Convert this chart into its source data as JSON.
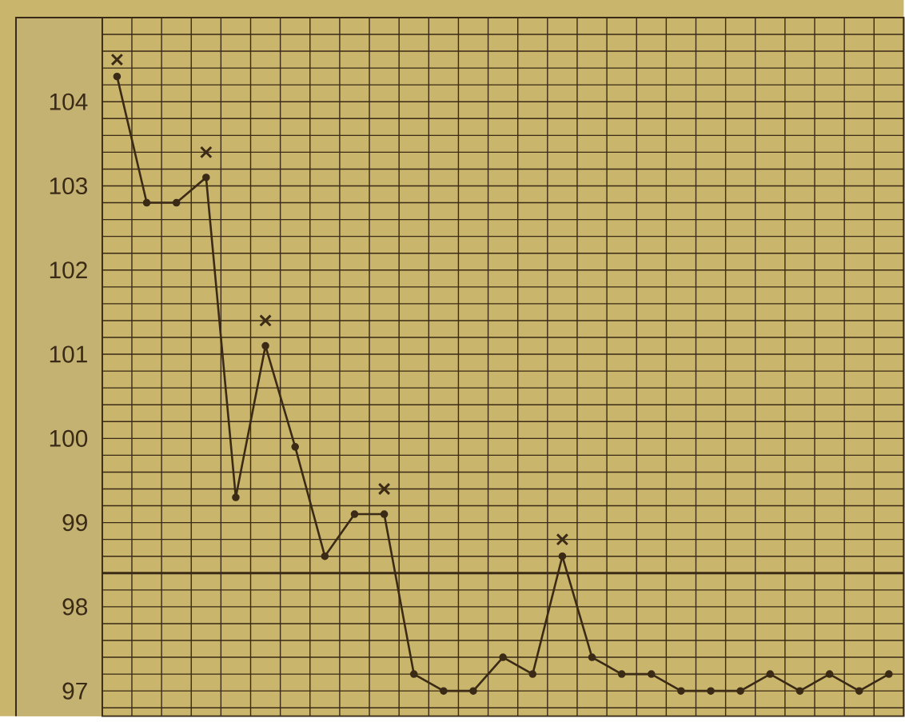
{
  "chart_data": {
    "type": "line",
    "categories": [
      null,
      null,
      null,
      null,
      null,
      null,
      null,
      null,
      null,
      null,
      null,
      null,
      null,
      null,
      null,
      null,
      null,
      null,
      null,
      null,
      null,
      null,
      null,
      null,
      null,
      null,
      null
    ],
    "series": [
      {
        "color": "#3a2a16",
        "marker": "circle",
        "values": [
          104.3,
          102.8,
          102.8,
          103.1,
          99.3,
          101.1,
          99.9,
          98.6,
          99.1,
          99.1,
          97.2,
          97.0,
          97.0,
          97.4,
          97.2,
          98.6,
          97.4,
          97.2,
          97.2,
          97.0,
          97.0,
          97.0,
          97.2,
          97.0,
          97.2,
          97.0,
          97.2
        ]
      },
      {
        "type": "scatter",
        "color": "#3a2a16",
        "marker": "cross",
        "values": [
          104.5,
          null,
          null,
          103.4,
          null,
          101.4,
          null,
          null,
          null,
          99.4,
          null,
          null,
          null,
          null,
          null,
          98.8,
          null,
          null,
          null,
          null,
          null,
          null,
          null,
          null,
          null,
          null,
          null
        ]
      }
    ],
    "ylim": [
      96.7,
      105.0
    ],
    "yticks": [
      {
        "value": 96.8,
        "label": null
      },
      97,
      {
        "value": 97.2,
        "label": null
      },
      {
        "value": 97.4,
        "label": null
      },
      {
        "value": 97.6,
        "label": null
      },
      {
        "value": 97.8,
        "label": null
      },
      98,
      {
        "value": 98.2,
        "label": null
      },
      {
        "value": 98.4,
        "label": null
      },
      {
        "value": 98.6,
        "label": null
      },
      {
        "value": 98.8,
        "label": null
      },
      99,
      {
        "value": 99.2,
        "label": null
      },
      {
        "value": 99.4,
        "label": null
      },
      {
        "value": 99.6,
        "label": null
      },
      {
        "value": 99.8,
        "label": null
      },
      100,
      {
        "value": 100.2,
        "label": null
      },
      {
        "value": 100.4,
        "label": null
      },
      {
        "value": 100.6,
        "label": null
      },
      {
        "value": 100.8,
        "label": null
      },
      101,
      {
        "value": 101.2,
        "label": null
      },
      {
        "value": 101.4,
        "label": null
      },
      {
        "value": 101.6,
        "label": null
      },
      {
        "value": 101.8,
        "label": null
      },
      102,
      {
        "value": 102.2,
        "label": null
      },
      {
        "value": 102.4,
        "label": null
      },
      {
        "value": 102.6,
        "label": null
      },
      {
        "value": 102.8,
        "label": null
      },
      103,
      {
        "value": 103.2,
        "label": null
      },
      {
        "value": 103.4,
        "label": null
      },
      {
        "value": 103.6,
        "label": null
      },
      {
        "value": 103.8,
        "label": null
      },
      104,
      {
        "value": 104.2,
        "label": null
      },
      {
        "value": 104.4,
        "label": null
      },
      {
        "value": 104.6,
        "label": null
      },
      {
        "value": 104.8,
        "label": null
      }
    ],
    "ref_lines": [
      {
        "axis": "y",
        "value": 98.4
      }
    ],
    "grid": true,
    "tick_labels": "y"
  }
}
